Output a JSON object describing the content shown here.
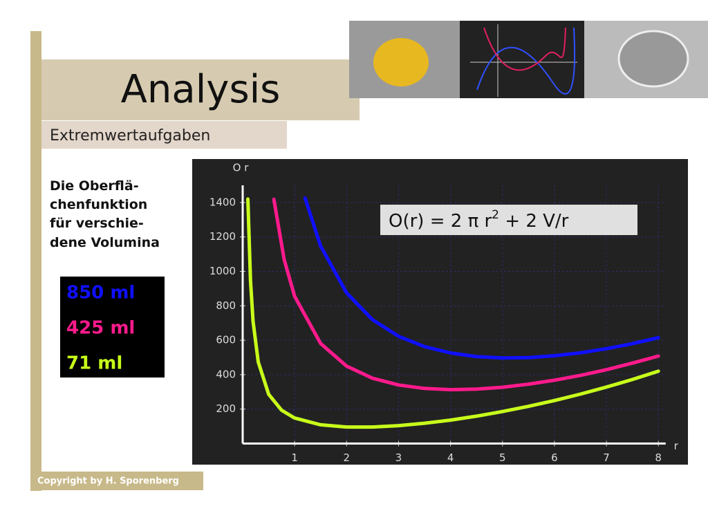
{
  "slide": {
    "title": "Analysis",
    "subtitle": "Extremwertaufgaben",
    "description": [
      "Die Oberflä-",
      "chenfunktion",
      "für verschie-",
      "dene Volumina"
    ],
    "copyright": "Copyright by H. Sporenberg"
  },
  "chart_data": {
    "type": "line",
    "y_axis_label": "O r",
    "x_axis_label": "r",
    "annotation": [
      "O(r) = 2 π r",
      "2",
      " + 2 V/r"
    ],
    "xlim": [
      0,
      8.1
    ],
    "ylim": [
      0,
      1500
    ],
    "xticks": [
      1,
      2,
      3,
      4,
      5,
      6,
      7,
      8
    ],
    "yticks": [
      200,
      400,
      600,
      800,
      1000,
      1200,
      1400
    ],
    "grid": true,
    "series": [
      {
        "name": "850 ml",
        "color": "#1010ff",
        "x": [
          1.2,
          1.5,
          2,
          2.5,
          3,
          3.5,
          4,
          4.5,
          5,
          5.5,
          6,
          6.5,
          7,
          7.5,
          8
        ],
        "values": [
          1426,
          1147,
          875,
          719,
          623,
          563,
          526,
          505,
          497,
          499,
          510,
          527,
          551,
          580,
          615
        ]
      },
      {
        "name": "425 ml",
        "color": "#ff1a8c",
        "x": [
          0.6,
          0.8,
          1,
          1.5,
          2,
          2.5,
          3,
          3.5,
          4,
          4.5,
          5,
          5.5,
          6,
          6.5,
          7,
          7.5,
          8
        ],
        "values": [
          1419,
          1067,
          856,
          581,
          450,
          379,
          340,
          320,
          313,
          316,
          327,
          345,
          368,
          396,
          429,
          467,
          508
        ]
      },
      {
        "name": "71 ml",
        "color": "#c8ff1a",
        "x": [
          0.1,
          0.15,
          0.2,
          0.3,
          0.5,
          0.75,
          1,
          1.5,
          2,
          2.5,
          3,
          3.5,
          4,
          4.5,
          5,
          5.5,
          6,
          6.5,
          7,
          7.5,
          8
        ],
        "values": [
          1420,
          947,
          710,
          474,
          286,
          193,
          148,
          109,
          96,
          96,
          104,
          118,
          136,
          159,
          186,
          216,
          250,
          287,
          328,
          372,
          420
        ]
      }
    ]
  }
}
